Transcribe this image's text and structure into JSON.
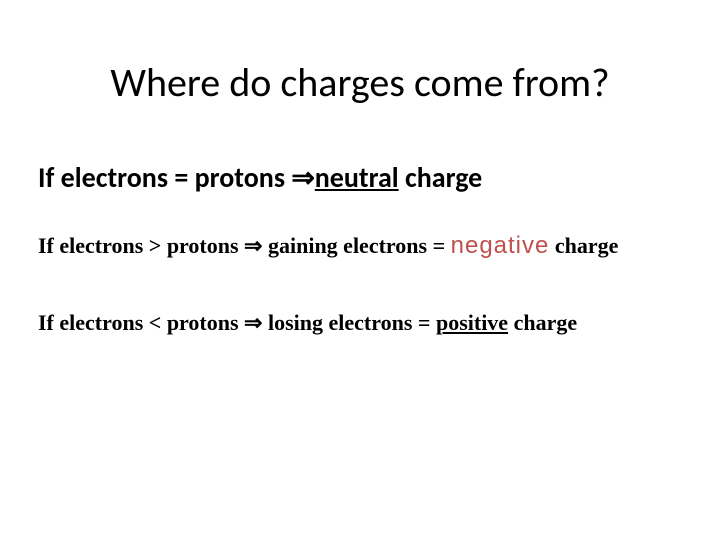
{
  "slide": {
    "title": "Where do charges come from?",
    "line1": {
      "prefix": "If electrons  = protons ",
      "arrow": "⇒",
      "neutral": "neutral",
      "suffix": " charge"
    },
    "line2": {
      "prefix": "If electrons > protons ",
      "arrow": "⇒",
      "mid": " gaining electrons = ",
      "negative": "negative",
      "suffix": " charge"
    },
    "line3": {
      "prefix": "If electrons  < protons ",
      "arrow": "⇒",
      "mid": " losing electrons = ",
      "positive": "positive",
      "suffix": " charge"
    }
  },
  "style": {
    "background_color": "#ffffff",
    "title_color": "#000000",
    "body_color": "#000000",
    "accent_color": "#c0504d",
    "title_fontsize": 40,
    "line1_fontsize": 28,
    "line2_fontsize": 22,
    "line3_fontsize": 22,
    "title_font": "Calibri",
    "line1_font": "Calibri",
    "serif_font": "Times New Roman",
    "negative_font": "Impact"
  }
}
